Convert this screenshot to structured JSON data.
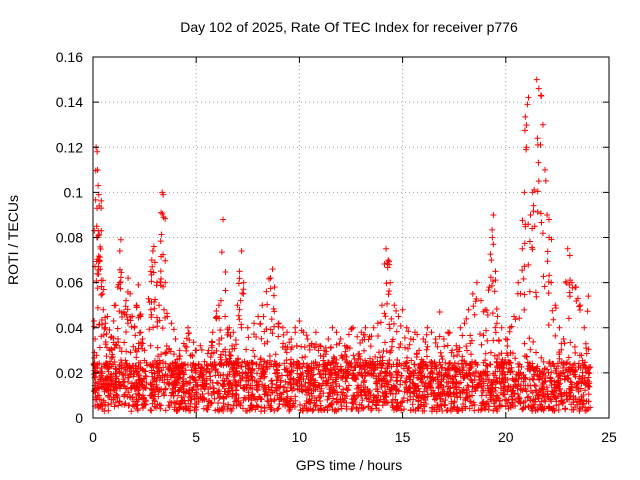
{
  "chart_data": {
    "type": "scatter",
    "title": "Day 102 of 2025, Rate Of TEC Index for receiver p776",
    "xlabel": "GPS time / hours",
    "ylabel": "ROTI / TECUs",
    "xlim": [
      0,
      25
    ],
    "ylim": [
      0,
      0.16
    ],
    "xticks": [
      0,
      5,
      10,
      15,
      20,
      25
    ],
    "xtick_labels": [
      "0",
      "5",
      "10",
      "15",
      "20",
      "25"
    ],
    "yticks": [
      0,
      0.02,
      0.04,
      0.06,
      0.08,
      0.1,
      0.12,
      0.14,
      0.16
    ],
    "ytick_labels": [
      "0",
      "0.02",
      "0.04",
      "0.06",
      "0.08",
      "0.1",
      "0.12",
      "0.14",
      "0.16"
    ],
    "grid": true,
    "legend": "none",
    "marker": "+",
    "marker_color": "#ff0000",
    "baseline_density_note_free": true,
    "series": [
      {
        "values_xy": [
          [
            0.05,
            0.043
          ],
          [
            0.1,
            0.035
          ],
          [
            0.15,
            0.12
          ],
          [
            0.2,
            0.118
          ],
          [
            0.22,
            0.11
          ],
          [
            0.25,
            0.103
          ],
          [
            0.28,
            0.099
          ],
          [
            0.3,
            0.094
          ],
          [
            0.18,
            0.085
          ],
          [
            0.25,
            0.083
          ],
          [
            0.3,
            0.07
          ],
          [
            0.35,
            0.066
          ],
          [
            0.4,
            0.061
          ],
          [
            0.45,
            0.055
          ],
          [
            0.5,
            0.048
          ],
          [
            0.6,
            0.04
          ],
          [
            0.7,
            0.045
          ],
          [
            0.8,
            0.039
          ],
          [
            0.9,
            0.036
          ],
          [
            1.0,
            0.043
          ],
          [
            1.1,
            0.05
          ],
          [
            1.2,
            0.058
          ],
          [
            1.3,
            0.06
          ],
          [
            1.35,
            0.079
          ],
          [
            1.3,
            0.074
          ],
          [
            1.5,
            0.047
          ],
          [
            1.6,
            0.052
          ],
          [
            1.7,
            0.062
          ],
          [
            1.8,
            0.055
          ],
          [
            1.9,
            0.045
          ],
          [
            2.0,
            0.04
          ],
          [
            2.1,
            0.05
          ],
          [
            2.2,
            0.059
          ],
          [
            2.3,
            0.045
          ],
          [
            2.4,
            0.035
          ],
          [
            2.5,
            0.03
          ],
          [
            2.8,
            0.065
          ],
          [
            2.85,
            0.07
          ],
          [
            2.9,
            0.074
          ],
          [
            2.95,
            0.076
          ],
          [
            3.0,
            0.069
          ],
          [
            3.1,
            0.06
          ],
          [
            3.2,
            0.05
          ],
          [
            3.3,
            0.091
          ],
          [
            3.35,
            0.1
          ],
          [
            3.4,
            0.099
          ],
          [
            3.42,
            0.089
          ],
          [
            3.5,
            0.06
          ],
          [
            3.6,
            0.045
          ],
          [
            3.8,
            0.042
          ],
          [
            4.0,
            0.035
          ],
          [
            4.2,
            0.03
          ],
          [
            4.4,
            0.033
          ],
          [
            4.6,
            0.04
          ],
          [
            4.8,
            0.028
          ],
          [
            5.0,
            0.03
          ],
          [
            5.2,
            0.032
          ],
          [
            5.4,
            0.025
          ],
          [
            5.6,
            0.03
          ],
          [
            5.8,
            0.038
          ],
          [
            6.0,
            0.045
          ],
          [
            6.1,
            0.05
          ],
          [
            6.2,
            0.052
          ],
          [
            6.3,
            0.088
          ],
          [
            6.4,
            0.045
          ],
          [
            6.6,
            0.04
          ],
          [
            6.8,
            0.038
          ],
          [
            7.0,
            0.05
          ],
          [
            7.1,
            0.065
          ],
          [
            7.2,
            0.074
          ],
          [
            7.3,
            0.06
          ],
          [
            7.5,
            0.04
          ],
          [
            7.8,
            0.042
          ],
          [
            8.0,
            0.045
          ],
          [
            8.2,
            0.05
          ],
          [
            8.4,
            0.056
          ],
          [
            8.6,
            0.062
          ],
          [
            8.7,
            0.066
          ],
          [
            8.8,
            0.058
          ],
          [
            9.0,
            0.042
          ],
          [
            9.2,
            0.04
          ],
          [
            9.4,
            0.038
          ],
          [
            9.6,
            0.035
          ],
          [
            9.8,
            0.04
          ],
          [
            10.0,
            0.043
          ],
          [
            10.2,
            0.038
          ],
          [
            10.4,
            0.035
          ],
          [
            10.6,
            0.033
          ],
          [
            10.8,
            0.038
          ],
          [
            11.0,
            0.032
          ],
          [
            11.2,
            0.03
          ],
          [
            11.4,
            0.035
          ],
          [
            11.6,
            0.04
          ],
          [
            11.8,
            0.038
          ],
          [
            12.0,
            0.035
          ],
          [
            12.2,
            0.032
          ],
          [
            12.4,
            0.037
          ],
          [
            12.6,
            0.04
          ],
          [
            12.8,
            0.036
          ],
          [
            13.0,
            0.038
          ],
          [
            13.2,
            0.04
          ],
          [
            13.4,
            0.036
          ],
          [
            13.6,
            0.04
          ],
          [
            13.8,
            0.042
          ],
          [
            14.0,
            0.05
          ],
          [
            14.2,
            0.075
          ],
          [
            14.3,
            0.07
          ],
          [
            14.35,
            0.068
          ],
          [
            14.4,
            0.06
          ],
          [
            14.6,
            0.05
          ],
          [
            14.8,
            0.045
          ],
          [
            15.0,
            0.048
          ],
          [
            15.2,
            0.04
          ],
          [
            15.4,
            0.035
          ],
          [
            15.6,
            0.038
          ],
          [
            15.8,
            0.03
          ],
          [
            16.0,
            0.035
          ],
          [
            16.2,
            0.04
          ],
          [
            16.4,
            0.038
          ],
          [
            16.6,
            0.035
          ],
          [
            16.8,
            0.047
          ],
          [
            17.0,
            0.035
          ],
          [
            17.2,
            0.038
          ],
          [
            17.4,
            0.03
          ],
          [
            17.6,
            0.032
          ],
          [
            17.8,
            0.04
          ],
          [
            18.0,
            0.042
          ],
          [
            18.2,
            0.048
          ],
          [
            18.4,
            0.055
          ],
          [
            18.6,
            0.06
          ],
          [
            18.8,
            0.052
          ],
          [
            19.0,
            0.048
          ],
          [
            19.2,
            0.058
          ],
          [
            19.3,
            0.07
          ],
          [
            19.35,
            0.08
          ],
          [
            19.4,
            0.09
          ],
          [
            19.5,
            0.065
          ],
          [
            19.6,
            0.045
          ],
          [
            19.8,
            0.04
          ],
          [
            20.0,
            0.035
          ],
          [
            20.2,
            0.04
          ],
          [
            20.4,
            0.045
          ],
          [
            20.6,
            0.06
          ],
          [
            20.8,
            0.075
          ],
          [
            20.9,
            0.1
          ],
          [
            21.0,
            0.12
          ],
          [
            21.05,
            0.139
          ],
          [
            21.1,
            0.142
          ],
          [
            21.2,
            0.09
          ],
          [
            21.3,
            0.1
          ],
          [
            21.4,
            0.085
          ],
          [
            21.5,
            0.15
          ],
          [
            21.6,
            0.146
          ],
          [
            21.7,
            0.143
          ],
          [
            21.8,
            0.13
          ],
          [
            21.9,
            0.11
          ],
          [
            22.0,
            0.09
          ],
          [
            22.1,
            0.08
          ],
          [
            22.2,
            0.06
          ],
          [
            22.4,
            0.05
          ],
          [
            22.6,
            0.04
          ],
          [
            22.8,
            0.035
          ],
          [
            23.0,
            0.075
          ],
          [
            23.1,
            0.072
          ],
          [
            23.2,
            0.06
          ],
          [
            23.4,
            0.058
          ],
          [
            23.6,
            0.05
          ],
          [
            23.8,
            0.04
          ],
          [
            24.0,
            0.054
          ]
        ]
      }
    ]
  }
}
